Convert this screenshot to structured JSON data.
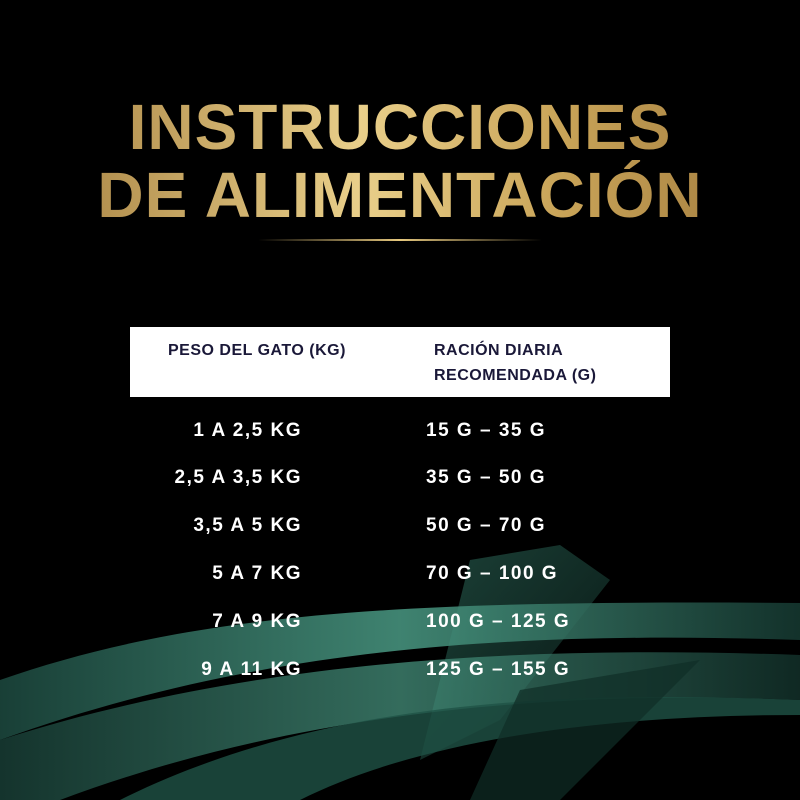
{
  "title": {
    "line1": "INSTRUCCIONES",
    "line2": "DE ALIMENTACIÓN"
  },
  "table": {
    "headers": [
      "PESO DEL GATO (KG)",
      "RACIÓN DIARIA RECOMENDADA (G)"
    ],
    "rows": [
      {
        "weight": "1 A 2,5 KG",
        "ration": "15 G – 35 G"
      },
      {
        "weight": "2,5 A 3,5 KG",
        "ration": "35 G – 50 G"
      },
      {
        "weight": "3,5 A 5 KG",
        "ration": "50 G – 70 G"
      },
      {
        "weight": "5 A 7 KG",
        "ration": "70 G – 100 G"
      },
      {
        "weight": "7 A 9 KG",
        "ration": "100 G – 125 G"
      },
      {
        "weight": "9 A 11 KG",
        "ration": "125 G – 155 G"
      }
    ]
  },
  "colors": {
    "background": "#000000",
    "gold": "#d9b86c",
    "header_bg": "#ffffff",
    "header_text": "#1a1838",
    "accent_green": "#3f8a76"
  }
}
